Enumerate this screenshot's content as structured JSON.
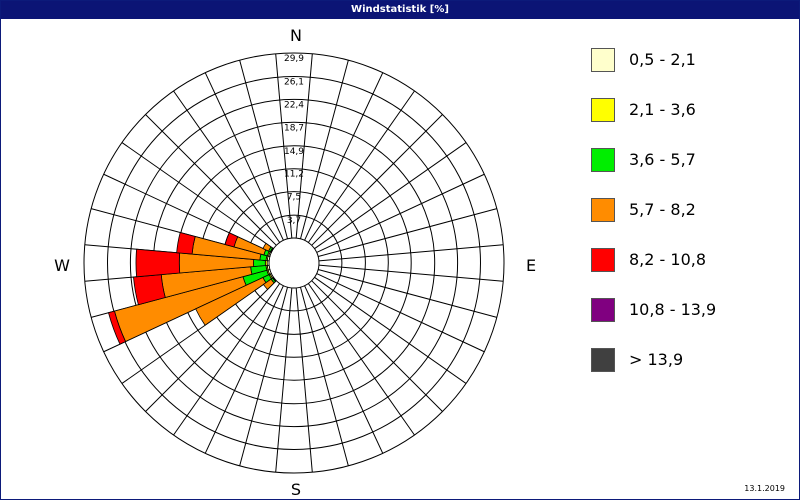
{
  "window": {
    "title": "Windstatistik [%]"
  },
  "footer": {
    "date": "13.1.2019"
  },
  "chart_data": {
    "type": "polar-bar",
    "title": "Windstatistik [%]",
    "directions_labels": {
      "n": "N",
      "e": "E",
      "s": "S",
      "w": "W"
    },
    "radial_ticks": [
      "3,7",
      "7,5",
      "11,2",
      "14,9",
      "18,7",
      "22,4",
      "26,1",
      "29,9"
    ],
    "radial_tick_values": [
      3.7,
      7.5,
      11.2,
      14.9,
      18.7,
      22.4,
      26.1,
      29.9
    ],
    "rmax": 29.9,
    "sector_count": 36,
    "classes": [
      {
        "label": "0,5 - 2,1",
        "color": "#ffffcc"
      },
      {
        "label": "2,1 - 3,6",
        "color": "#ffff00"
      },
      {
        "label": "3,6 - 5,7",
        "color": "#00ee00"
      },
      {
        "label": "5,7 - 8,2",
        "color": "#ff8c00"
      },
      {
        "label": "8,2 - 10,8",
        "color": "#ff0000"
      },
      {
        "label": "10,8 - 13,9",
        "color": "#800080"
      },
      {
        "label": " > 13,9",
        "color": "#404040"
      }
    ],
    "sectors": [
      {
        "direction_deg": 250,
        "cumulative": [
          0.3,
          0.5,
          4.5,
          26.0,
          27.0,
          27.0,
          27.0
        ]
      },
      {
        "direction_deg": 260,
        "cumulative": [
          0.3,
          0.5,
          3.0,
          17.5,
          22.0,
          22.0,
          22.0
        ]
      },
      {
        "direction_deg": 270,
        "cumulative": [
          0.3,
          0.6,
          2.5,
          14.5,
          21.5,
          21.5,
          21.5
        ]
      },
      {
        "direction_deg": 280,
        "cumulative": [
          0.3,
          0.5,
          1.5,
          12.5,
          15.0,
          15.0,
          15.0
        ]
      },
      {
        "direction_deg": 290,
        "cumulative": [
          0.2,
          0.4,
          1.0,
          6.0,
          7.5,
          7.5,
          7.5
        ]
      },
      {
        "direction_deg": 240,
        "cumulative": [
          0.2,
          0.4,
          1.5,
          13.5,
          13.5,
          13.5,
          13.5
        ]
      },
      {
        "direction_deg": 230,
        "cumulative": [
          0.1,
          0.2,
          0.5,
          2.0,
          2.0,
          2.0,
          2.0
        ]
      },
      {
        "direction_deg": 300,
        "cumulative": [
          0.1,
          0.2,
          0.5,
          1.5,
          1.5,
          1.5,
          1.5
        ]
      }
    ]
  }
}
